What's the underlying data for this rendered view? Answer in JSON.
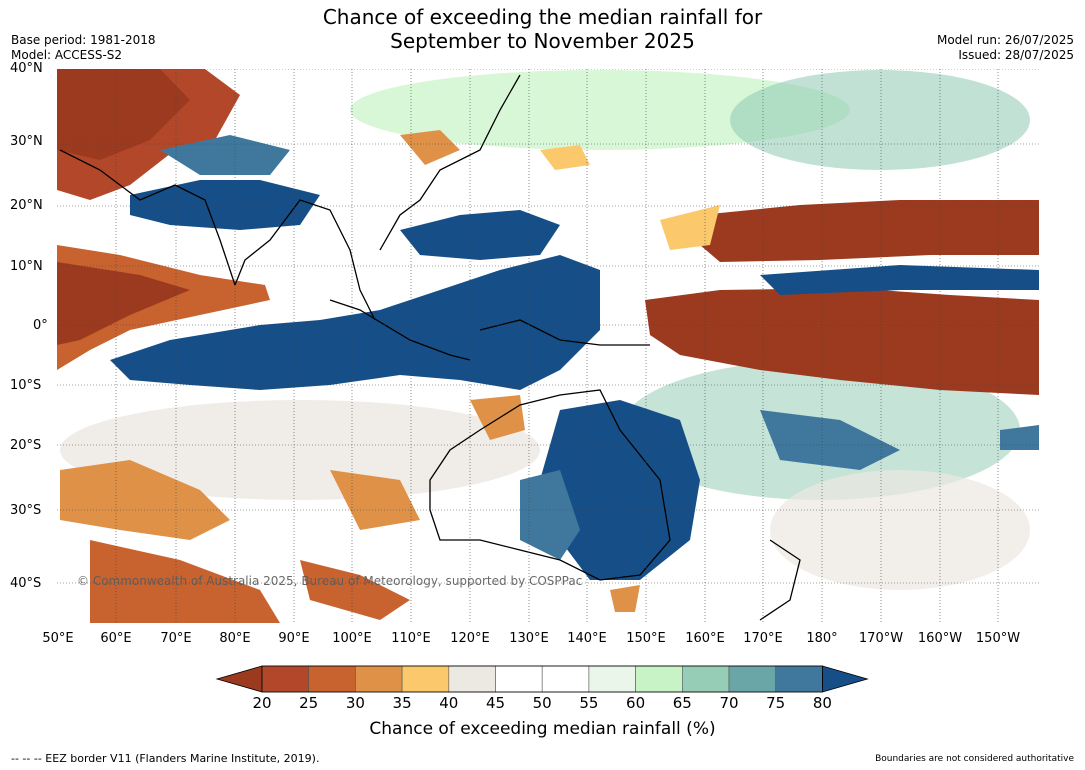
{
  "header": {
    "title_line1": "Chance of exceeding the median rainfall for",
    "title_line2": "September to November 2025",
    "base_period": "Base period: 1981-2018",
    "model": "Model: ACCESS-S2",
    "model_run": "Model run: 26/07/2025",
    "issued": "Issued: 28/07/2025"
  },
  "map": {
    "lat_labels": [
      "40°N",
      "30°N",
      "20°N",
      "10°N",
      "0°",
      "10°S",
      "20°S",
      "30°S",
      "40°S"
    ],
    "lon_labels": [
      "50°E",
      "60°E",
      "70°E",
      "80°E",
      "90°E",
      "100°E",
      "110°E",
      "120°E",
      "130°E",
      "140°E",
      "150°E",
      "160°E",
      "170°E",
      "180°",
      "170°W",
      "160°W",
      "150°W"
    ],
    "copyright": "© Commonwealth of Australia 2025, Bureau of Meteorology, supported by COSPPac",
    "extent": {
      "lon_min": 50,
      "lon_max": 215,
      "lat_min": -45,
      "lat_max": 40
    }
  },
  "colorbar": {
    "ticks": [
      "20",
      "25",
      "30",
      "35",
      "40",
      "45",
      "50",
      "55",
      "60",
      "65",
      "70",
      "75",
      "80"
    ],
    "colors": [
      "#9c3a1f",
      "#b3472a",
      "#c8632f",
      "#df9148",
      "#fbc96b",
      "#ece8e2",
      "#ffffff",
      "#ffffff",
      "#eaf6e9",
      "#c8f3c6",
      "#96cdb7",
      "#6aa6a8",
      "#3f789c",
      "#164f88"
    ],
    "title": "Chance of exceeding median rainfall (%)"
  },
  "footer": {
    "eez": "--  --  -- EEZ border V11 (Flanders Marine Institute, 2019).",
    "boundaries": "Boundaries are not considered authoritative"
  }
}
